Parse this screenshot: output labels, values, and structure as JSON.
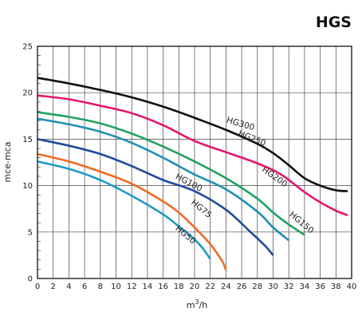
{
  "chart_data": {
    "type": "line",
    "title": "HGS",
    "xlabel": "m³/h",
    "ylabel": "mce-mca",
    "xlim": [
      0,
      40
    ],
    "ylim": [
      0,
      25
    ],
    "xticks": [
      0,
      2,
      4,
      6,
      8,
      10,
      12,
      14,
      16,
      18,
      20,
      22,
      24,
      26,
      28,
      30,
      32,
      34,
      36,
      38,
      40
    ],
    "yticks": [
      0,
      5,
      10,
      15,
      20,
      25
    ],
    "grid": true,
    "series": [
      {
        "name": "HG300",
        "color": "#111111",
        "label_x": 24.0,
        "label_y": 16.8,
        "label_angle": -16,
        "x": [
          0,
          4,
          8,
          12,
          16,
          20,
          24,
          28,
          30,
          32,
          34,
          36,
          38,
          39.5
        ],
        "y": [
          21.6,
          21.0,
          20.3,
          19.5,
          18.5,
          17.3,
          16.0,
          14.5,
          13.5,
          12.2,
          10.8,
          10.0,
          9.5,
          9.4
        ]
      },
      {
        "name": "HG250",
        "color": "#e2156e",
        "label_x": 25.5,
        "label_y": 15.4,
        "label_angle": -22,
        "x": [
          0,
          4,
          8,
          12,
          16,
          20,
          24,
          28,
          31,
          34,
          36,
          38,
          39.5
        ],
        "y": [
          19.7,
          19.3,
          18.6,
          17.8,
          16.5,
          14.8,
          13.6,
          12.4,
          11.2,
          9.3,
          8.2,
          7.3,
          6.8
        ]
      },
      {
        "name": "HG200",
        "color": "#1fa162",
        "label_x": 28.5,
        "label_y": 11.6,
        "label_angle": -35,
        "x": [
          0,
          4,
          8,
          12,
          16,
          20,
          24,
          28,
          30,
          32,
          34
        ],
        "y": [
          17.9,
          17.4,
          16.7,
          15.6,
          14.2,
          12.6,
          10.8,
          8.6,
          7.1,
          5.8,
          4.7
        ]
      },
      {
        "name": "HG150",
        "color": "#1e90b2",
        "label_x": 32.0,
        "label_y": 6.8,
        "label_angle": -40,
        "x": [
          0,
          4,
          8,
          12,
          16,
          20,
          24,
          28,
          30,
          32
        ],
        "y": [
          17.2,
          16.6,
          15.8,
          14.6,
          13.0,
          11.2,
          9.6,
          7.2,
          5.5,
          4.1
        ]
      },
      {
        "name": "HG100",
        "color": "#1e4c9a",
        "label_x": 17.5,
        "label_y": 10.8,
        "label_angle": -28,
        "x": [
          0,
          4,
          8,
          12,
          16,
          20,
          24,
          27,
          29,
          30
        ],
        "y": [
          15.0,
          14.3,
          13.4,
          12.1,
          10.6,
          9.4,
          7.4,
          5.1,
          3.5,
          2.5
        ]
      },
      {
        "name": "HG75",
        "color": "#ee6b24",
        "label_x": 19.5,
        "label_y": 8.1,
        "label_angle": -40,
        "x": [
          0,
          4,
          8,
          12,
          16,
          18,
          20,
          22,
          23.5,
          24
        ],
        "y": [
          13.4,
          12.6,
          11.5,
          10.2,
          8.3,
          7.1,
          5.5,
          3.7,
          1.9,
          0.9
        ]
      },
      {
        "name": "HG50",
        "color": "#1f99c5",
        "label_x": 17.5,
        "label_y": 5.3,
        "label_angle": -40,
        "x": [
          0,
          4,
          8,
          12,
          16,
          18,
          20,
          21,
          22
        ],
        "y": [
          12.6,
          11.8,
          10.6,
          8.9,
          6.9,
          5.6,
          4.2,
          3.3,
          2.1
        ]
      }
    ]
  }
}
